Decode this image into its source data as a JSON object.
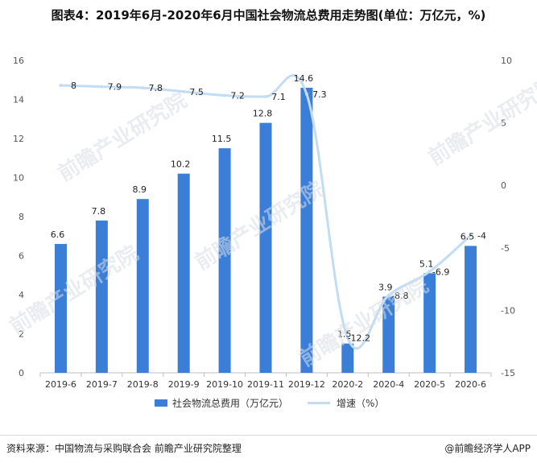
{
  "title": "图表4：2019年6月-2020年6月中国社会物流总费用走势图(单位：万亿元，%)",
  "source": "资料来源：中国物流与采购联合会 前瞻产业研究院整理",
  "brand": "@前瞻经济学人APP",
  "watermark_text": "前瞻产业研究院",
  "colors": {
    "bar": "#3a7ed8",
    "line": "#c2dcf4"
  },
  "chart_data": {
    "type": "bar",
    "title": "图表4：2019年6月-2020年6月中国社会物流总费用走势图(单位：万亿元，%)",
    "categories": [
      "2019-6",
      "2019-7",
      "2019-8",
      "2019-9",
      "2019-10",
      "2019-11",
      "2019-12",
      "2020-2",
      "2020-4",
      "2020-5",
      "2020-6"
    ],
    "series": [
      {
        "name": "社会物流总费用（万亿元）",
        "type": "bar",
        "axis": "left",
        "values": [
          6.6,
          7.8,
          8.9,
          10.2,
          11.5,
          12.8,
          14.6,
          1.5,
          3.9,
          5.1,
          6.5
        ]
      },
      {
        "name": "增速（%）",
        "type": "line",
        "axis": "right",
        "values": [
          8,
          7.9,
          7.8,
          7.5,
          7.2,
          7.1,
          7.3,
          -12.2,
          -8.8,
          -6.9,
          -4
        ]
      }
    ],
    "y_left": {
      "min": 0,
      "max": 16,
      "ticks": [
        0,
        2,
        4,
        6,
        8,
        10,
        12,
        14,
        16
      ]
    },
    "y_right": {
      "min": -15,
      "max": 10,
      "ticks": [
        -15,
        -10,
        -5,
        0,
        5,
        10
      ]
    },
    "grid": false,
    "legend_position": "bottom"
  }
}
